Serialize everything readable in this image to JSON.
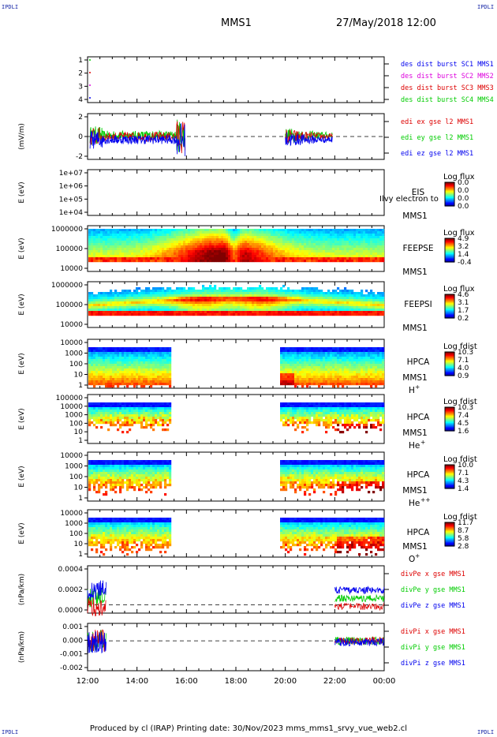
{
  "header": {
    "spacecraft": "MMS1",
    "datetime": "27/May/2018 12:00",
    "corner_label": "IPDLI"
  },
  "footer": {
    "text": "Produced by cl (IRAP)   Printing date: 30/Nov/2023   mms_mms1_srvy_vue_web2.cl"
  },
  "time_axis": {
    "tick_labels": [
      "12:00",
      "14:00",
      "16:00",
      "18:00",
      "20:00",
      "22:00",
      "00:00"
    ],
    "start_hour": 12,
    "end_hour": 24
  },
  "colors": {
    "blue": "#0000ee",
    "green": "#00cc00",
    "red": "#dd0000",
    "magenta": "#dd00dd",
    "label_blue": "#1a1a9c"
  },
  "chart_data": [
    {
      "id": "des-dist",
      "type": "line",
      "ylabel": "",
      "ylim": [
        0.5,
        4.3
      ],
      "yticks": [
        "1",
        "2",
        "3",
        "4"
      ],
      "legend": [
        {
          "text": "des dist burst SC1 MMS1",
          "color": "#0000ee"
        },
        {
          "text": "des dist burst SC2 MMS2",
          "color": "#dd00dd"
        },
        {
          "text": "des dist burst SC3 MMS3",
          "color": "#dd0000"
        },
        {
          "text": "des dist burst SC4 MMS4",
          "color": "#00cc00"
        }
      ]
    },
    {
      "id": "edi-e",
      "type": "line",
      "ylabel": "(mV/m)",
      "ylim": [
        -3,
        3
      ],
      "yticks": [
        "2",
        "0",
        "-2"
      ],
      "intervals": [
        [
          12.1,
          15.95
        ],
        [
          20.0,
          21.9
        ]
      ],
      "legend": [
        {
          "text": "edi ex gse l2 MMS1",
          "color": "#dd0000"
        },
        {
          "text": "edi ey gse l2 MMS1",
          "color": "#00cc00"
        },
        {
          "text": "edi ez gse l2 MMS1",
          "color": "#0000ee"
        }
      ]
    },
    {
      "id": "eis",
      "type": "heatmap",
      "ylabel": "E (eV)",
      "yticks": [
        "1e+07",
        "1e+06",
        "1e+05",
        "1e+04"
      ],
      "instrument": "EIS",
      "sc": "MMS1",
      "overlay_text": "Ilvy electron to",
      "cbar_title": "Log flux",
      "cbar_ticks": [
        "0.0",
        "0.0",
        "0.0",
        "0.0"
      ]
    },
    {
      "id": "feeps-e",
      "type": "heatmap",
      "ylabel": "E (eV)",
      "yticks": [
        "1000000",
        "100000",
        "10000"
      ],
      "instrument": "FEEPSE",
      "sc": "MMS1",
      "cbar_title": "Log flux",
      "cbar_ticks": [
        "4.9",
        "3.2",
        "1.4",
        "-0.4"
      ]
    },
    {
      "id": "feeps-i",
      "type": "heatmap",
      "ylabel": "E (eV)",
      "yticks": [
        "1000000",
        "100000",
        "10000"
      ],
      "instrument": "FEEPSI",
      "sc": "MMS1",
      "cbar_title": "Log flux",
      "cbar_ticks": [
        "4.6",
        "3.1",
        "1.7",
        "0.2"
      ]
    },
    {
      "id": "hpca-h",
      "type": "heatmap",
      "ylabel": "E (eV)",
      "yticks": [
        "10000",
        "1000",
        "100",
        "10",
        "1"
      ],
      "instrument": "HPCA",
      "sc": "MMS1",
      "species": "H",
      "charge": "+",
      "cbar_title": "Log fdist",
      "cbar_ticks": [
        "10.3",
        "7.1",
        "4.0",
        "0.9"
      ]
    },
    {
      "id": "hpca-he1",
      "type": "heatmap",
      "ylabel": "E (eV)",
      "yticks": [
        "100000",
        "10000",
        "1000",
        "100",
        "10",
        "1"
      ],
      "instrument": "HPCA",
      "sc": "MMS1",
      "species": "He",
      "charge": "+",
      "cbar_title": "Log fdist",
      "cbar_ticks": [
        "10.3",
        "7.4",
        "4.5",
        "1.6"
      ]
    },
    {
      "id": "hpca-he2",
      "type": "heatmap",
      "ylabel": "E (eV)",
      "yticks": [
        "10000",
        "1000",
        "100",
        "10",
        "1"
      ],
      "instrument": "HPCA",
      "sc": "MMS1",
      "species": "He",
      "charge": "++",
      "cbar_title": "Log fdist",
      "cbar_ticks": [
        "10.0",
        "7.1",
        "4.3",
        "1.4"
      ]
    },
    {
      "id": "hpca-o",
      "type": "heatmap",
      "ylabel": "E (eV)",
      "yticks": [
        "10000",
        "1000",
        "100",
        "10",
        "1"
      ],
      "instrument": "HPCA",
      "sc": "MMS1",
      "species": "O",
      "charge": "+",
      "cbar_title": "Log fdist",
      "cbar_ticks": [
        "11.7",
        "8.7",
        "5.8",
        "2.8"
      ]
    },
    {
      "id": "divpe",
      "type": "line",
      "ylabel": "(nPa/km)",
      "ylim": [
        -0.0001,
        0.00048
      ],
      "yticks": [
        "0.0004",
        "0.0002",
        "0.0000"
      ],
      "intervals": [
        [
          12.0,
          12.75
        ],
        [
          22.0,
          24.0
        ]
      ],
      "legend": [
        {
          "text": "divPe x gse MMS1",
          "color": "#dd0000"
        },
        {
          "text": "divPe y gse MMS1",
          "color": "#00cc00"
        },
        {
          "text": "divPe z gse MMS1",
          "color": "#0000ee"
        }
      ]
    },
    {
      "id": "divpi",
      "type": "line",
      "ylabel": "(nPa/km)",
      "ylim": [
        -0.0024,
        0.0014
      ],
      "yticks": [
        "0.001",
        "0.000",
        "-0.001",
        "-0.002"
      ],
      "intervals": [
        [
          12.0,
          12.75
        ],
        [
          22.0,
          24.0
        ]
      ],
      "legend": [
        {
          "text": "divPi x gse MMS1",
          "color": "#dd0000"
        },
        {
          "text": "divPi y gse MMS1",
          "color": "#00cc00"
        },
        {
          "text": "divPi z gse MMS1",
          "color": "#0000ee"
        }
      ]
    }
  ]
}
